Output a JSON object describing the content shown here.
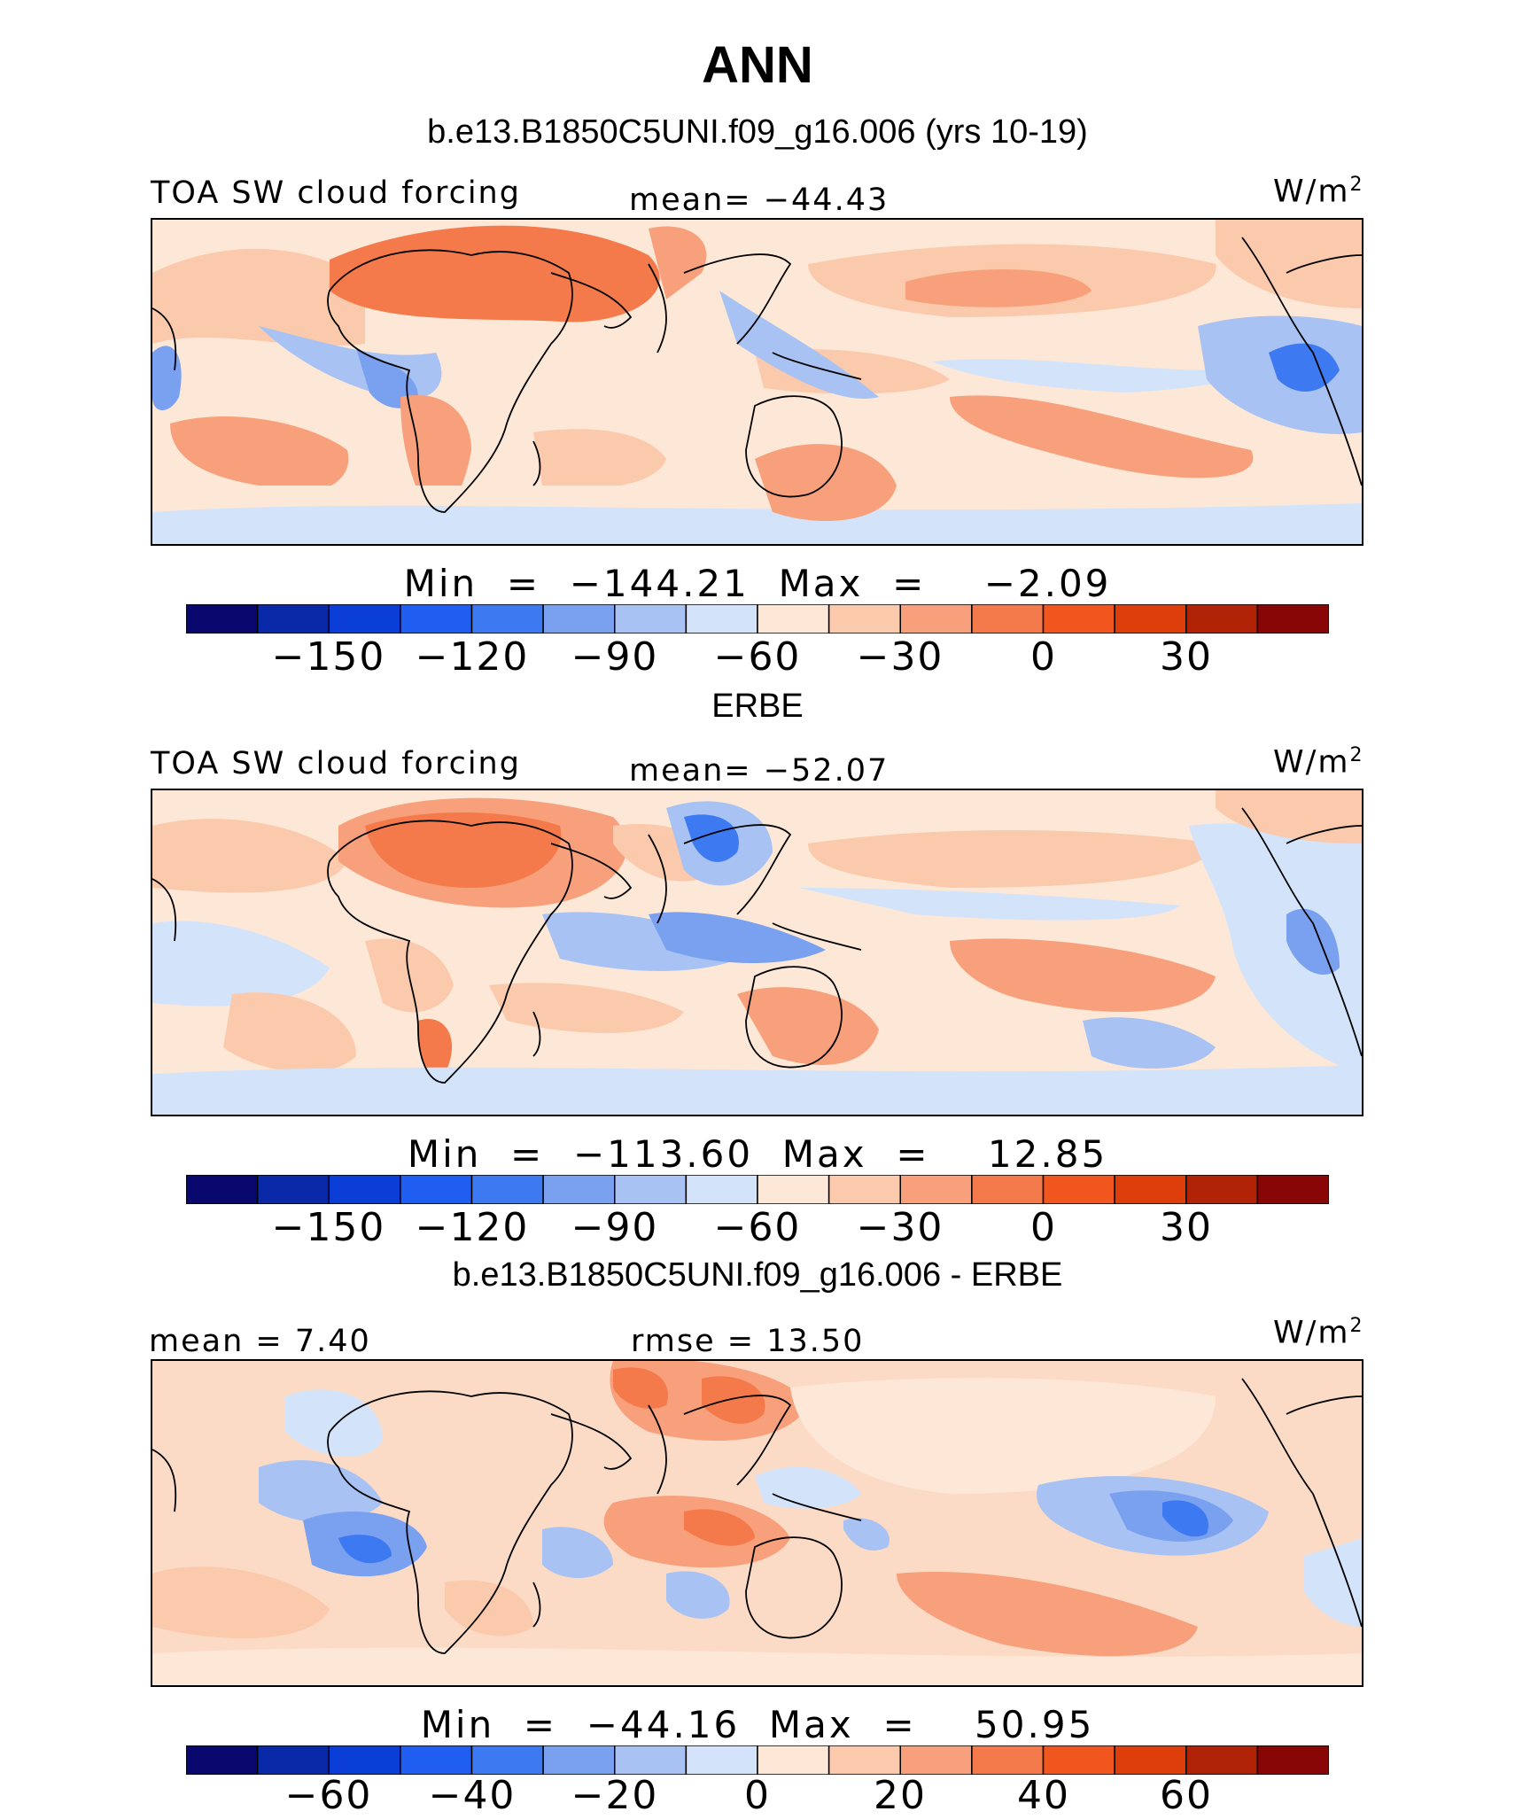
{
  "title": "ANN",
  "palette": [
    "#08086e",
    "#0a29a8",
    "#0a3ed6",
    "#1f5ef0",
    "#3d79f0",
    "#7aa0f0",
    "#a7c2f3",
    "#d3e3fa",
    "#fde8d8",
    "#fbc9ab",
    "#f7a07b",
    "#f47a4b",
    "#f2561f",
    "#de3e0a",
    "#b02306",
    "#880606"
  ],
  "coastline_color": "#000000",
  "panels": [
    {
      "subtitle": "b.e13.B1850C5UNI.f09_g16.006 (yrs 10-19)",
      "left_label": "TOA SW cloud forcing",
      "center_label": "mean=  −44.43",
      "units": "W/m",
      "units_exp": "2",
      "stats": "Min  =  −144.21  Max  =    −2.09",
      "ticks": [
        "−150",
        "−120",
        "−90",
        "−60",
        "−30",
        "0",
        "30"
      ]
    },
    {
      "subtitle": "ERBE",
      "left_label": "TOA SW cloud forcing",
      "center_label": "mean=  −52.07",
      "units": "W/m",
      "units_exp": "2",
      "stats": "Min  =  −113.60  Max  =    12.85",
      "ticks": [
        "−150",
        "−120",
        "−90",
        "−60",
        "−30",
        "0",
        "30"
      ]
    },
    {
      "subtitle": "b.e13.B1850C5UNI.f09_g16.006 - ERBE",
      "left_label": "mean  =    7.40",
      "center_label": "rmse  =   13.50",
      "units": "W/m",
      "units_exp": "2",
      "stats": "Min  =  −44.16  Max  =    50.95",
      "ticks": [
        "−60",
        "−40",
        "−20",
        "0",
        "20",
        "40",
        "60"
      ]
    }
  ]
}
